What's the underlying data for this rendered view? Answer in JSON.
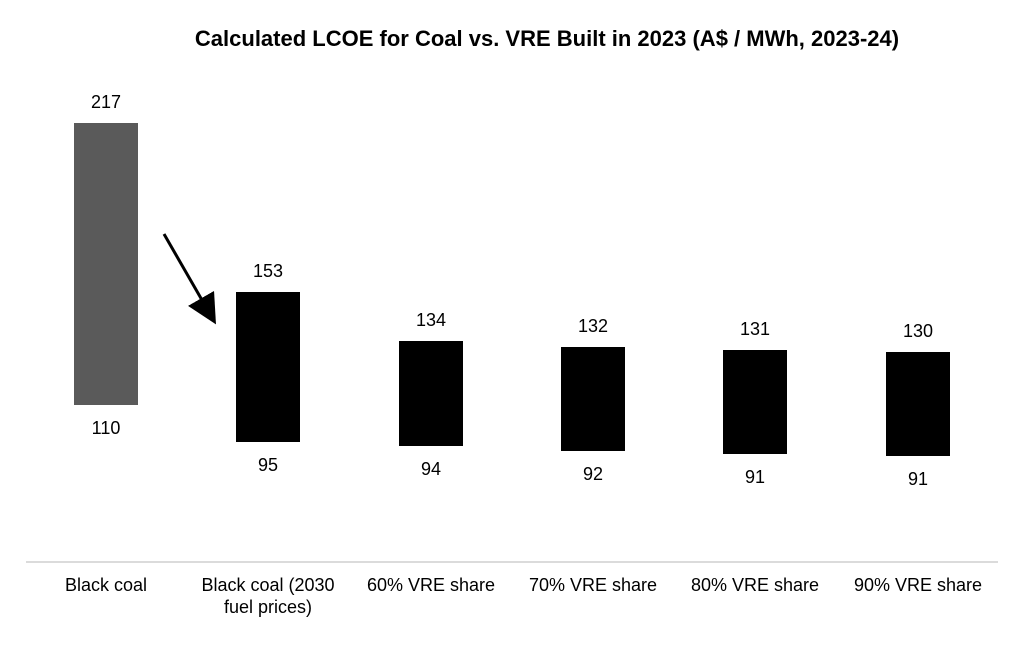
{
  "chart_data": {
    "type": "bar",
    "subtype": "floating-range",
    "title": "Calculated LCOE for Coal vs. VRE Built in 2023 (A$ / MWh, 2023-24)",
    "categories": [
      [
        "Black coal"
      ],
      [
        "Black coal (2030",
        "fuel prices)"
      ],
      [
        "60% VRE share"
      ],
      [
        "70% VRE share"
      ],
      [
        "80% VRE share"
      ],
      [
        "90% VRE share"
      ]
    ],
    "series": [
      {
        "low": [
          110,
          95,
          94,
          92,
          91,
          91
        ],
        "high": [
          217,
          153,
          134,
          132,
          131,
          130
        ],
        "colors": [
          "#5a5a5a",
          "#000000",
          "#000000",
          "#000000",
          "#000000",
          "#000000"
        ]
      }
    ],
    "arrow": {
      "from": "Black coal",
      "to": "Black coal (2030 fuel prices)"
    },
    "grid": false,
    "legend": "none"
  }
}
